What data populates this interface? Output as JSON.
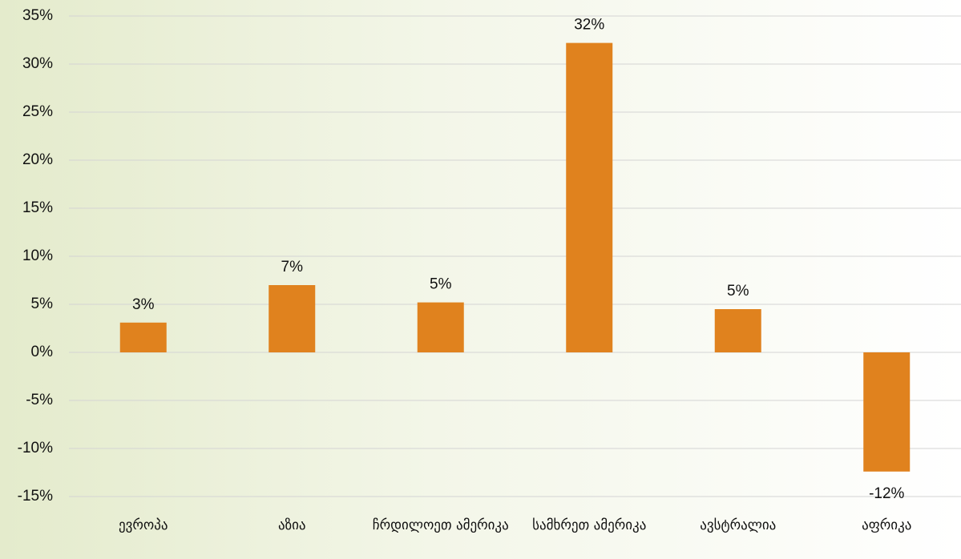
{
  "chart_data": {
    "type": "bar",
    "categories": [
      "ევროპა",
      "აზია",
      "ჩრდილოეთ ამერიკა",
      "სამხრეთ ამერიკა",
      "ავსტრალია",
      "აფრიკა"
    ],
    "values": [
      3.1,
      7.0,
      5.2,
      32.2,
      4.5,
      -12.4
    ],
    "value_labels": [
      "3%",
      "7%",
      "5%",
      "32%",
      "5%",
      "-12%"
    ],
    "color": "#e0821e",
    "ylim": [
      -15,
      35
    ],
    "yticks": [
      {
        "value": -15,
        "label": "-15%"
      },
      {
        "value": -10,
        "label": "-10%"
      },
      {
        "value": -5,
        "label": "-5%"
      },
      {
        "value": 0,
        "label": "0%"
      },
      {
        "value": 5,
        "label": "5%"
      },
      {
        "value": 10,
        "label": "10%"
      },
      {
        "value": 15,
        "label": "15%"
      },
      {
        "value": 20,
        "label": "20%"
      },
      {
        "value": 25,
        "label": "25%"
      },
      {
        "value": 30,
        "label": "30%"
      },
      {
        "value": 35,
        "label": "35%"
      }
    ],
    "grid": true
  }
}
